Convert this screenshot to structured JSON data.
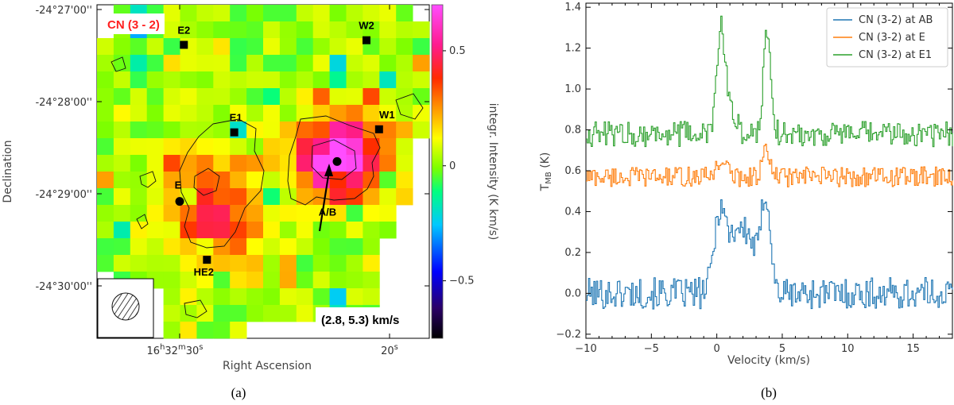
{
  "chart_data": [
    {
      "type": "heatmap",
      "panel_label": "(a)",
      "title": "CN (3 - 2)",
      "velocity_range_label": "(2.8, 5.3) km/s",
      "xlabel": "Right Ascension",
      "ylabel": "Declination",
      "colorbar_label": "integr. Intensity (K km/s)",
      "colorbar_range": [
        -0.75,
        0.7
      ],
      "colorbar_ticks": [
        0.5,
        0,
        -0.5
      ],
      "colorbar_tick_labels": [
        "0.5",
        "0",
        "−0.5"
      ],
      "dec_ticks": [
        {
          "label": "-24°27'00''",
          "arcsec": 60
        },
        {
          "label": "-24°28'00''",
          "arcsec": 0
        },
        {
          "label": "-24°29'00''",
          "arcsec": -60
        },
        {
          "label": "-24°30'00''",
          "arcsec": -120
        }
      ],
      "ra_ticks": [
        {
          "label": "16h32m30s",
          "offset_s": 0
        },
        {
          "label": "20s",
          "offset_s": -10
        }
      ],
      "sources": [
        {
          "name": "E2",
          "ra_s": 29.8,
          "dec_arcsec": 37,
          "marker": "square"
        },
        {
          "name": "W2",
          "ra_s": 21.1,
          "dec_arcsec": 40,
          "marker": "square"
        },
        {
          "name": "E1",
          "ra_s": 27.4,
          "dec_arcsec": -20,
          "marker": "square"
        },
        {
          "name": "W1",
          "ra_s": 20.5,
          "dec_arcsec": -18,
          "marker": "square"
        },
        {
          "name": "E",
          "ra_s": 30.0,
          "dec_arcsec": -65,
          "marker": "circle"
        },
        {
          "name": "A/B",
          "ra_s": 22.5,
          "dec_arcsec": -39,
          "marker": "circle"
        },
        {
          "name": "HE2",
          "ra_s": 28.7,
          "dec_arcsec": -103,
          "marker": "square"
        }
      ]
    },
    {
      "type": "line",
      "panel_label": "(b)",
      "xlabel": "Velocity (km/s)",
      "ylabel": "T_MB (K)",
      "xlim": [
        -10,
        18
      ],
      "ylim": [
        -0.22,
        1.42
      ],
      "xticks": [
        -10,
        -5,
        0,
        5,
        10,
        15
      ],
      "yticks": [
        -0.2,
        0.0,
        0.2,
        0.4,
        0.6,
        0.8,
        1.0,
        1.2,
        1.4
      ],
      "legend_loc": "top-right",
      "series": [
        {
          "name": "CN (3-2) at AB",
          "color": "#1f77b4",
          "baseline": 0.0,
          "noise": 0.055,
          "lines": [
            {
              "v": 0.2,
              "a": 0.4,
              "w": 0.45
            },
            {
              "v": 1.5,
              "a": 0.3,
              "w": 0.6
            },
            {
              "v": 3.7,
              "a": 0.48,
              "w": 0.35
            },
            {
              "v": 2.6,
              "a": 0.2,
              "w": 0.5
            }
          ]
        },
        {
          "name": "CN (3-2) at E",
          "color": "#ff7f0e",
          "baseline": 0.57,
          "noise": 0.035,
          "lines": [
            {
              "v": 0.3,
              "a": 0.08,
              "w": 0.4
            },
            {
              "v": 3.7,
              "a": 0.12,
              "w": 0.3
            }
          ]
        },
        {
          "name": "CN (3-2) at E1",
          "color": "#2ca02c",
          "baseline": 0.78,
          "noise": 0.045,
          "lines": [
            {
              "v": 0.25,
              "a": 0.48,
              "w": 0.3
            },
            {
              "v": 3.8,
              "a": 0.52,
              "w": 0.28
            },
            {
              "v": 0.9,
              "a": 0.15,
              "w": 0.4
            }
          ]
        }
      ]
    }
  ]
}
